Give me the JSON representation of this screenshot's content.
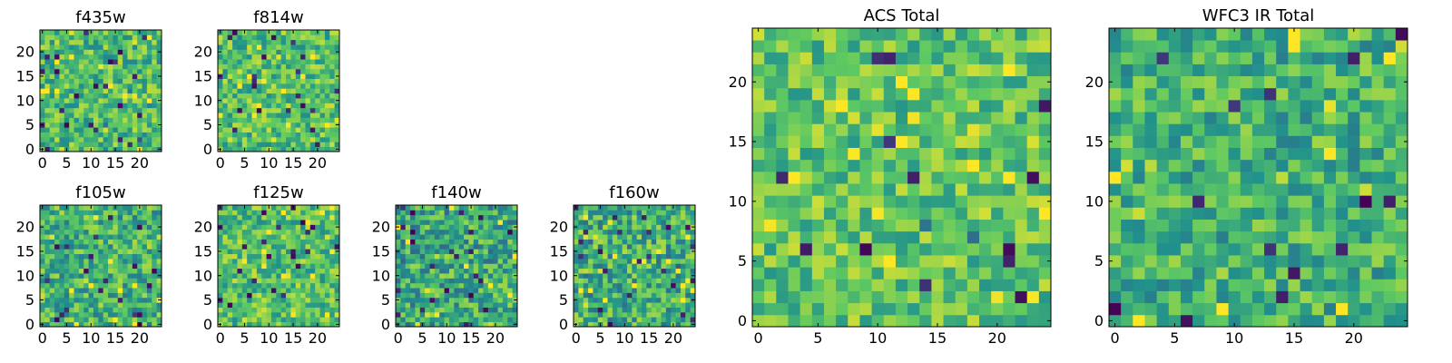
{
  "figure": {
    "background": "#ffffff",
    "colormap": "viridis",
    "colormap_stops": [
      "#440154",
      "#3b528b",
      "#21918c",
      "#5ec962",
      "#fde725"
    ]
  },
  "chart_data": [
    {
      "type": "heatmap",
      "title": "f435w",
      "grid_size": [
        25,
        25
      ],
      "xticks": [
        "0",
        "5",
        "10",
        "15",
        "20"
      ],
      "yticks": [
        "0",
        "5",
        "10",
        "15",
        "20"
      ],
      "xlim": [
        0,
        25
      ],
      "ylim": [
        0,
        25
      ],
      "value_range": [
        0,
        1
      ],
      "mean_level": 0.68,
      "contrast": 0.22,
      "dark_fraction": 0.03,
      "grid": false,
      "colorbar": false
    },
    {
      "type": "heatmap",
      "title": "f814w",
      "grid_size": [
        25,
        25
      ],
      "xticks": [
        "0",
        "5",
        "10",
        "15",
        "20"
      ],
      "yticks": [
        "0",
        "5",
        "10",
        "15",
        "20"
      ],
      "xlim": [
        0,
        25
      ],
      "ylim": [
        0,
        25
      ],
      "value_range": [
        0,
        1
      ],
      "mean_level": 0.7,
      "contrast": 0.22,
      "dark_fraction": 0.03,
      "grid": false,
      "colorbar": false
    },
    {
      "type": "heatmap",
      "title": "f105w",
      "grid_size": [
        25,
        25
      ],
      "xticks": [
        "0",
        "5",
        "10",
        "15",
        "20"
      ],
      "yticks": [
        "0",
        "5",
        "10",
        "15",
        "20"
      ],
      "xlim": [
        0,
        25
      ],
      "ylim": [
        0,
        25
      ],
      "value_range": [
        0,
        1
      ],
      "mean_level": 0.64,
      "contrast": 0.24,
      "dark_fraction": 0.035,
      "grid": false,
      "colorbar": false
    },
    {
      "type": "heatmap",
      "title": "f125w",
      "grid_size": [
        25,
        25
      ],
      "xticks": [
        "0",
        "5",
        "10",
        "15",
        "20"
      ],
      "yticks": [
        "0",
        "5",
        "10",
        "15",
        "20"
      ],
      "xlim": [
        0,
        25
      ],
      "ylim": [
        0,
        25
      ],
      "value_range": [
        0,
        1
      ],
      "mean_level": 0.7,
      "contrast": 0.22,
      "dark_fraction": 0.03,
      "grid": false,
      "colorbar": false
    },
    {
      "type": "heatmap",
      "title": "f140w",
      "grid_size": [
        25,
        25
      ],
      "xticks": [
        "0",
        "5",
        "10",
        "15",
        "20"
      ],
      "yticks": [
        "0",
        "5",
        "10",
        "15",
        "20"
      ],
      "xlim": [
        0,
        25
      ],
      "ylim": [
        0,
        25
      ],
      "value_range": [
        0,
        1
      ],
      "mean_level": 0.6,
      "contrast": 0.26,
      "dark_fraction": 0.045,
      "grid": false,
      "colorbar": false
    },
    {
      "type": "heatmap",
      "title": "f160w",
      "grid_size": [
        25,
        25
      ],
      "xticks": [
        "0",
        "5",
        "10",
        "15",
        "20"
      ],
      "yticks": [
        "0",
        "5",
        "10",
        "15",
        "20"
      ],
      "xlim": [
        0,
        25
      ],
      "ylim": [
        0,
        25
      ],
      "value_range": [
        0,
        1
      ],
      "mean_level": 0.62,
      "contrast": 0.26,
      "dark_fraction": 0.04,
      "grid": false,
      "colorbar": false
    },
    {
      "type": "heatmap",
      "title": "ACS Total",
      "grid_size": [
        25,
        25
      ],
      "xticks": [
        "0",
        "5",
        "10",
        "15",
        "20"
      ],
      "yticks": [
        "0",
        "5",
        "10",
        "15",
        "20"
      ],
      "xlim": [
        0,
        25
      ],
      "ylim": [
        0,
        25
      ],
      "value_range": [
        0,
        1
      ],
      "mean_level": 0.72,
      "contrast": 0.2,
      "dark_fraction": 0.02,
      "grid": false,
      "colorbar": false
    },
    {
      "type": "heatmap",
      "title": "WFC3 IR Total",
      "grid_size": [
        25,
        25
      ],
      "xticks": [
        "0",
        "5",
        "10",
        "15",
        "20"
      ],
      "yticks": [
        "0",
        "5",
        "10",
        "15",
        "20"
      ],
      "xlim": [
        0,
        25
      ],
      "ylim": [
        0,
        25
      ],
      "value_range": [
        0,
        1
      ],
      "mean_level": 0.64,
      "contrast": 0.22,
      "dark_fraction": 0.03,
      "grid": false,
      "colorbar": false
    }
  ]
}
